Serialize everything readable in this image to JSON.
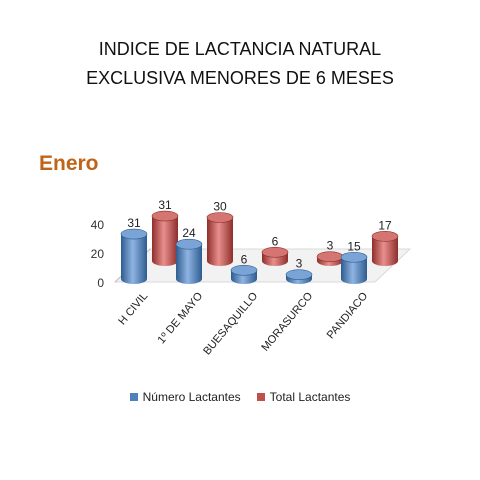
{
  "title_line1": "INDICE DE LACTANCIA NATURAL",
  "title_line2": "EXCLUSIVA MENORES DE 6 MESES",
  "subtitle": "Enero",
  "colors": {
    "series1": "#4F81BD",
    "series2": "#C0504D",
    "subtitle": "#C0641A"
  },
  "chart_data": {
    "type": "bar",
    "style": "3d-cylinder",
    "categories": [
      "H CIVIL",
      "1º DE MAYO",
      "BUESAQUILLO",
      "MORASURCO",
      "PANDIACO"
    ],
    "series": [
      {
        "name": "Número Lactantes",
        "values": [
          31,
          24,
          6,
          3,
          15
        ]
      },
      {
        "name": "Total Lactantes",
        "values": [
          31,
          30,
          6,
          3,
          17
        ]
      }
    ],
    "yticks": [
      0,
      20,
      40
    ],
    "ylim": [
      0,
      40
    ],
    "grid": false,
    "legend_position": "bottom"
  }
}
